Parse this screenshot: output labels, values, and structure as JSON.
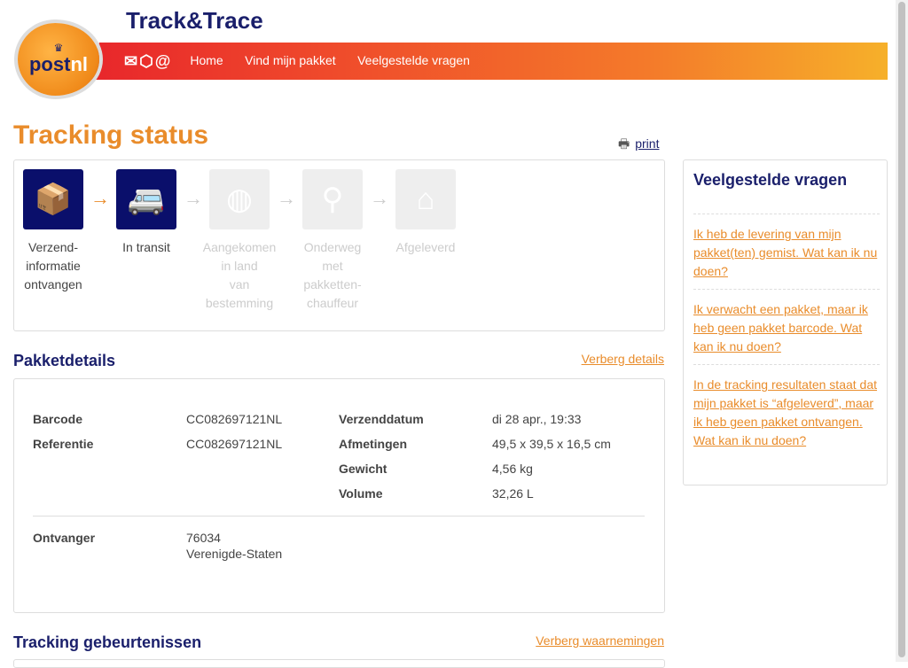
{
  "header": {
    "title": "Track&Trace",
    "logo_text": "postnl",
    "nav": [
      "Home",
      "Vind mijn pakket",
      "Veelgestelde vragen"
    ],
    "nav_icons": [
      "envelope-icon",
      "package-icon",
      "at-icon"
    ]
  },
  "page_title": "Tracking status",
  "print": "print",
  "steps": [
    {
      "label": "Verzend-\ninformatie\nontvangen",
      "done": true,
      "icon": "box-info-icon"
    },
    {
      "label": "In transit",
      "done": true,
      "icon": "van-plane-icon"
    },
    {
      "label": "Aangekomen\nin land\nvan\nbestemming",
      "done": false,
      "icon": "globe-check-icon"
    },
    {
      "label": "Onderweg\nmet\npakketten-\nchauffeur",
      "done": false,
      "icon": "courier-icon"
    },
    {
      "label": "Afgeleverd",
      "done": false,
      "icon": "house-check-icon"
    }
  ],
  "details": {
    "heading": "Pakketdetails",
    "toggle": "Verberg details",
    "left": [
      {
        "k": "Barcode",
        "v": "CC082697121NL"
      },
      {
        "k": "Referentie",
        "v": "CC082697121NL"
      }
    ],
    "right": [
      {
        "k": "Verzenddatum",
        "v": "di 28 apr., 19:33"
      },
      {
        "k": "Afmetingen",
        "v": "49,5 x 39,5 x 16,5 cm"
      },
      {
        "k": "Gewicht",
        "v": "4,56 kg"
      },
      {
        "k": "Volume",
        "v": "32,26 L"
      }
    ],
    "recipient": {
      "k": "Ontvanger",
      "v1": "76034",
      "v2": "Verenigde-Staten"
    }
  },
  "events": {
    "heading": "Tracking gebeurtenissen",
    "toggle": "Verberg waarnemingen"
  },
  "faq": {
    "heading": "Veelgestelde vragen",
    "items": [
      "Ik heb de levering van mijn pakket(ten) gemist. Wat kan ik nu doen?",
      "Ik verwacht een pakket, maar ik heb geen pakket barcode. Wat kan ik nu doen?",
      "In de tracking resultaten staat dat mijn pakket is “afgeleverd”, maar ik heb geen pakket ontvangen. Wat kan ik nu doen?"
    ]
  },
  "colors": {
    "brand_orange": "#e98c2b",
    "navy": "#1a1f6b"
  }
}
